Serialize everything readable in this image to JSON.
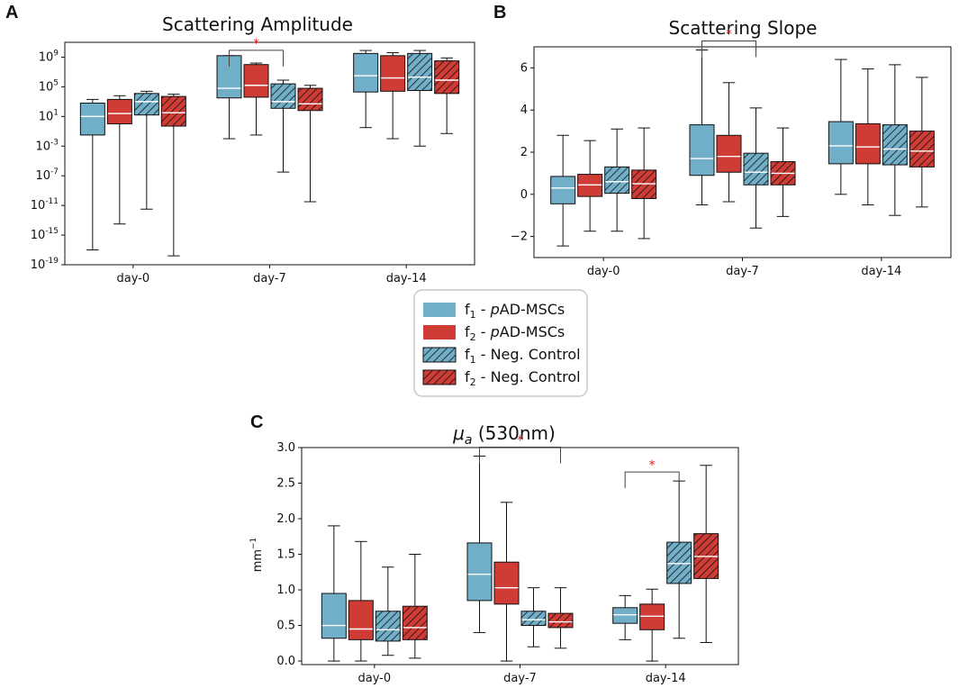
{
  "colors": {
    "f1": "#71aec8",
    "f2": "#cf3b35",
    "edge": "#111111",
    "median": "#ffffff",
    "sig": "#e02020"
  },
  "groups": [
    "day-0",
    "day-7",
    "day-14"
  ],
  "legend": {
    "items": [
      {
        "key": "f1",
        "sub": "1",
        "text": " - pAD-MSCs",
        "hatch": false
      },
      {
        "key": "f2",
        "sub": "2",
        "text": " - pAD-MSCs",
        "hatch": false
      },
      {
        "key": "f1",
        "sub": "1",
        "text": " - Neg. Control",
        "hatch": true
      },
      {
        "key": "f2",
        "sub": "2",
        "text": " - Neg. Control",
        "hatch": true
      }
    ]
  },
  "chart_data": [
    {
      "panel": "A",
      "type": "box",
      "title": "Scattering Amplitude",
      "yscale": "log",
      "ylim_log10": [
        -19,
        11
      ],
      "yticks": [
        {
          "v": -19,
          "base": "10",
          "exp": "-19"
        },
        {
          "v": -15,
          "base": "10",
          "exp": "-15"
        },
        {
          "v": -11,
          "base": "10",
          "exp": "-11"
        },
        {
          "v": -7,
          "base": "10",
          "exp": "-7"
        },
        {
          "v": -3,
          "base": "10",
          "exp": "-3"
        },
        {
          "v": 1,
          "base": "10",
          "exp": "1"
        },
        {
          "v": 5,
          "base": "10",
          "exp": "5"
        },
        {
          "v": 9,
          "base": "10",
          "exp": "9"
        }
      ],
      "series_order": [
        "f1 - pAD-MSCs",
        "f2 - pAD-MSCs",
        "f1 - Neg. Control",
        "f2 - Neg. Control"
      ],
      "boxes": [
        [
          [
            -17,
            -1.5,
            1,
            2.8,
            3.3
          ],
          [
            -13.5,
            0,
            1.4,
            3.3,
            3.8
          ],
          [
            -11.5,
            1.2,
            3,
            4.1,
            4.4
          ],
          [
            -17.8,
            -0.3,
            1.5,
            3.7,
            4
          ]
        ],
        [
          [
            -2,
            3.5,
            4.8,
            9.2,
            9.2
          ],
          [
            -1.5,
            3.6,
            5.2,
            8,
            8.2
          ],
          [
            -6.5,
            2.1,
            3,
            5.4,
            5.9
          ],
          [
            -10.5,
            1.8,
            2.7,
            4.8,
            5.2
          ]
        ],
        [
          [
            -0.5,
            4.3,
            6.5,
            9.5,
            9.9
          ],
          [
            -2,
            4.4,
            6.2,
            9.2,
            9.6
          ],
          [
            -3,
            4.5,
            6.3,
            9.5,
            9.9
          ],
          [
            -1.3,
            4.1,
            5.9,
            8.5,
            8.9
          ]
        ]
      ],
      "significance": [
        {
          "group": "day-7",
          "from": 0,
          "to": 2,
          "label": "*"
        }
      ]
    },
    {
      "panel": "B",
      "type": "box",
      "title": "Scattering Slope",
      "yscale": "linear",
      "ylim": [
        -3,
        7
      ],
      "yticks": [
        {
          "v": -2,
          "label": "−2"
        },
        {
          "v": 0,
          "label": "0"
        },
        {
          "v": 2,
          "label": "2"
        },
        {
          "v": 4,
          "label": "4"
        },
        {
          "v": 6,
          "label": "6"
        }
      ],
      "series_order": [
        "f1 - pAD-MSCs",
        "f2 - pAD-MSCs",
        "f1 - Neg. Control",
        "f2 - Neg. Control"
      ],
      "boxes": [
        [
          [
            -2.45,
            -0.45,
            0.3,
            0.85,
            2.8
          ],
          [
            -1.75,
            -0.1,
            0.45,
            0.95,
            2.55
          ],
          [
            -1.75,
            0.05,
            0.6,
            1.3,
            3.1
          ],
          [
            -2.1,
            -0.2,
            0.5,
            1.15,
            3.15
          ]
        ],
        [
          [
            -0.5,
            0.9,
            1.7,
            3.3,
            6.85
          ],
          [
            -0.35,
            1.05,
            1.8,
            2.8,
            5.3
          ],
          [
            -1.6,
            0.45,
            1.05,
            1.95,
            4.1
          ],
          [
            -1.05,
            0.45,
            1.0,
            1.55,
            3.15
          ]
        ],
        [
          [
            0.0,
            1.45,
            2.3,
            3.45,
            6.4
          ],
          [
            -0.5,
            1.45,
            2.25,
            3.35,
            5.95
          ],
          [
            -1.0,
            1.4,
            2.15,
            3.3,
            6.15
          ],
          [
            -0.6,
            1.3,
            2.05,
            3.0,
            5.55
          ]
        ]
      ],
      "significance": [
        {
          "group": "day-7",
          "from": 0,
          "to": 2,
          "label": "*"
        }
      ]
    },
    {
      "panel": "C",
      "type": "box",
      "title": "μa (530nm)",
      "title_symbol": "μ",
      "title_sub": "a",
      "title_rest": " (530nm)",
      "yscale": "linear",
      "ylim": [
        -0.05,
        3.0
      ],
      "ylabel_base": "mm",
      "ylabel_exp": "−1",
      "yticks": [
        {
          "v": 0.0,
          "label": "0.0"
        },
        {
          "v": 0.5,
          "label": "0.5"
        },
        {
          "v": 1.0,
          "label": "1.0"
        },
        {
          "v": 1.5,
          "label": "1.5"
        },
        {
          "v": 2.0,
          "label": "2.0"
        },
        {
          "v": 2.5,
          "label": "2.5"
        },
        {
          "v": 3.0,
          "label": "3.0"
        }
      ],
      "series_order": [
        "f1 - pAD-MSCs",
        "f2 - pAD-MSCs",
        "f1 - Neg. Control",
        "f2 - Neg. Control"
      ],
      "boxes": [
        [
          [
            0.0,
            0.32,
            0.5,
            0.95,
            1.9
          ],
          [
            0.0,
            0.3,
            0.45,
            0.85,
            1.68
          ],
          [
            0.08,
            0.28,
            0.44,
            0.7,
            1.32
          ],
          [
            0.04,
            0.3,
            0.47,
            0.77,
            1.5
          ]
        ],
        [
          [
            0.4,
            0.85,
            1.22,
            1.66,
            2.88
          ],
          [
            0.0,
            0.8,
            1.03,
            1.39,
            2.23
          ],
          [
            0.2,
            0.5,
            0.58,
            0.7,
            1.03
          ],
          [
            0.18,
            0.47,
            0.55,
            0.67,
            1.03
          ]
        ],
        [
          [
            0.3,
            0.53,
            0.65,
            0.75,
            0.92
          ],
          [
            0.0,
            0.44,
            0.63,
            0.8,
            1.01
          ],
          [
            0.32,
            1.09,
            1.37,
            1.67,
            2.53
          ],
          [
            0.26,
            1.16,
            1.47,
            1.79,
            2.75
          ]
        ]
      ],
      "significance": [
        {
          "group": "day-7",
          "from": 0,
          "to": 3,
          "label": "*"
        },
        {
          "group": "day-14",
          "from": 0,
          "to": 2,
          "label": "*"
        }
      ]
    }
  ],
  "panel_labels": [
    "A",
    "B",
    "C"
  ]
}
